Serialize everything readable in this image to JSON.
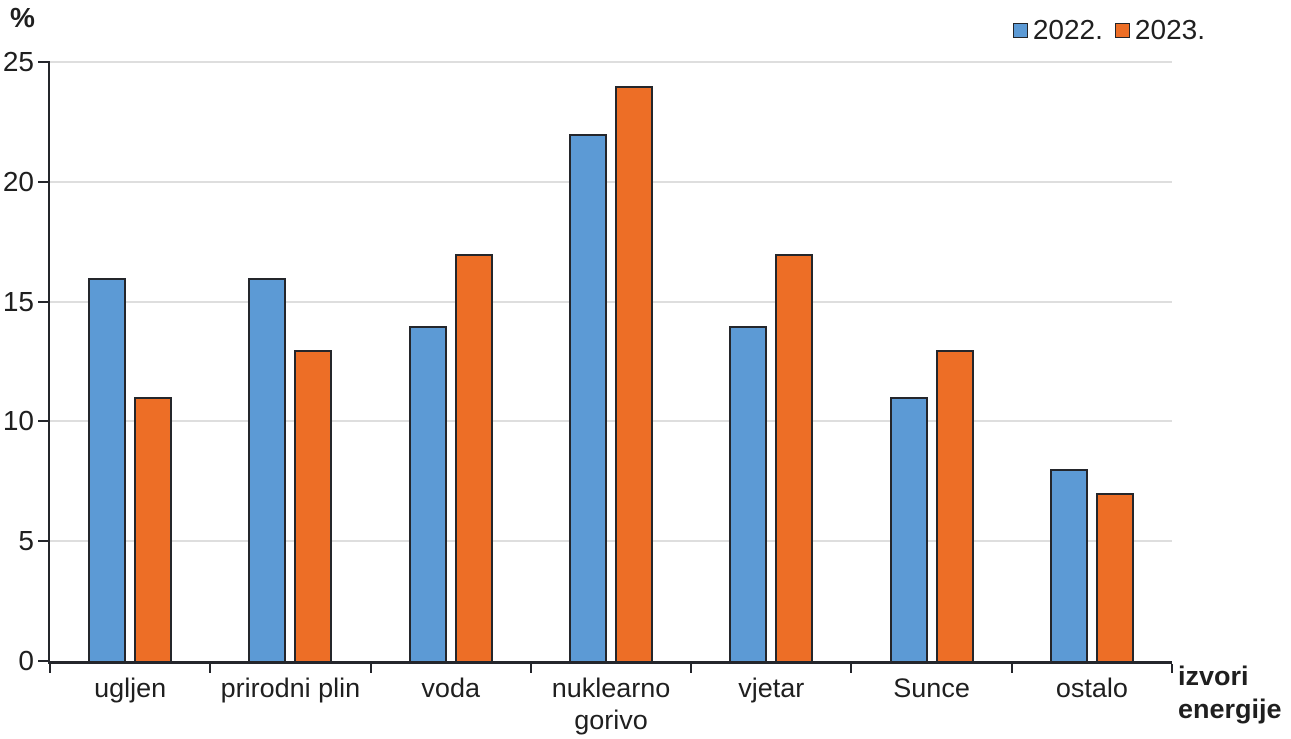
{
  "colors": {
    "series_2022": "#5C9AD5",
    "series_2023": "#ED6E26",
    "bar_border": "#24262b",
    "gridline": "#dedede",
    "axis": "#24262b",
    "text": "#1f1f1f"
  },
  "chart_data": {
    "type": "bar",
    "title": "",
    "unit_label": "%",
    "categories": [
      "ugljen",
      "prirodni plin",
      "voda",
      "nuklearno gorivo",
      "vjetar",
      "Sunce",
      "ostalo"
    ],
    "series": [
      {
        "name": "2022.",
        "color": "#5C9AD5",
        "values": [
          16,
          16,
          14,
          22,
          14,
          11,
          8
        ]
      },
      {
        "name": "2023.",
        "color": "#ED6E26",
        "values": [
          11,
          13,
          17,
          24,
          17,
          13,
          7
        ]
      }
    ],
    "xlabel": "izvori energije",
    "xlabel_lines": [
      "izvori",
      "energije"
    ],
    "ylabel": "%",
    "ylim": [
      0,
      25
    ],
    "yticks": [
      0,
      5,
      10,
      15,
      20,
      25
    ],
    "grid": true,
    "legend_position": "top-right"
  }
}
